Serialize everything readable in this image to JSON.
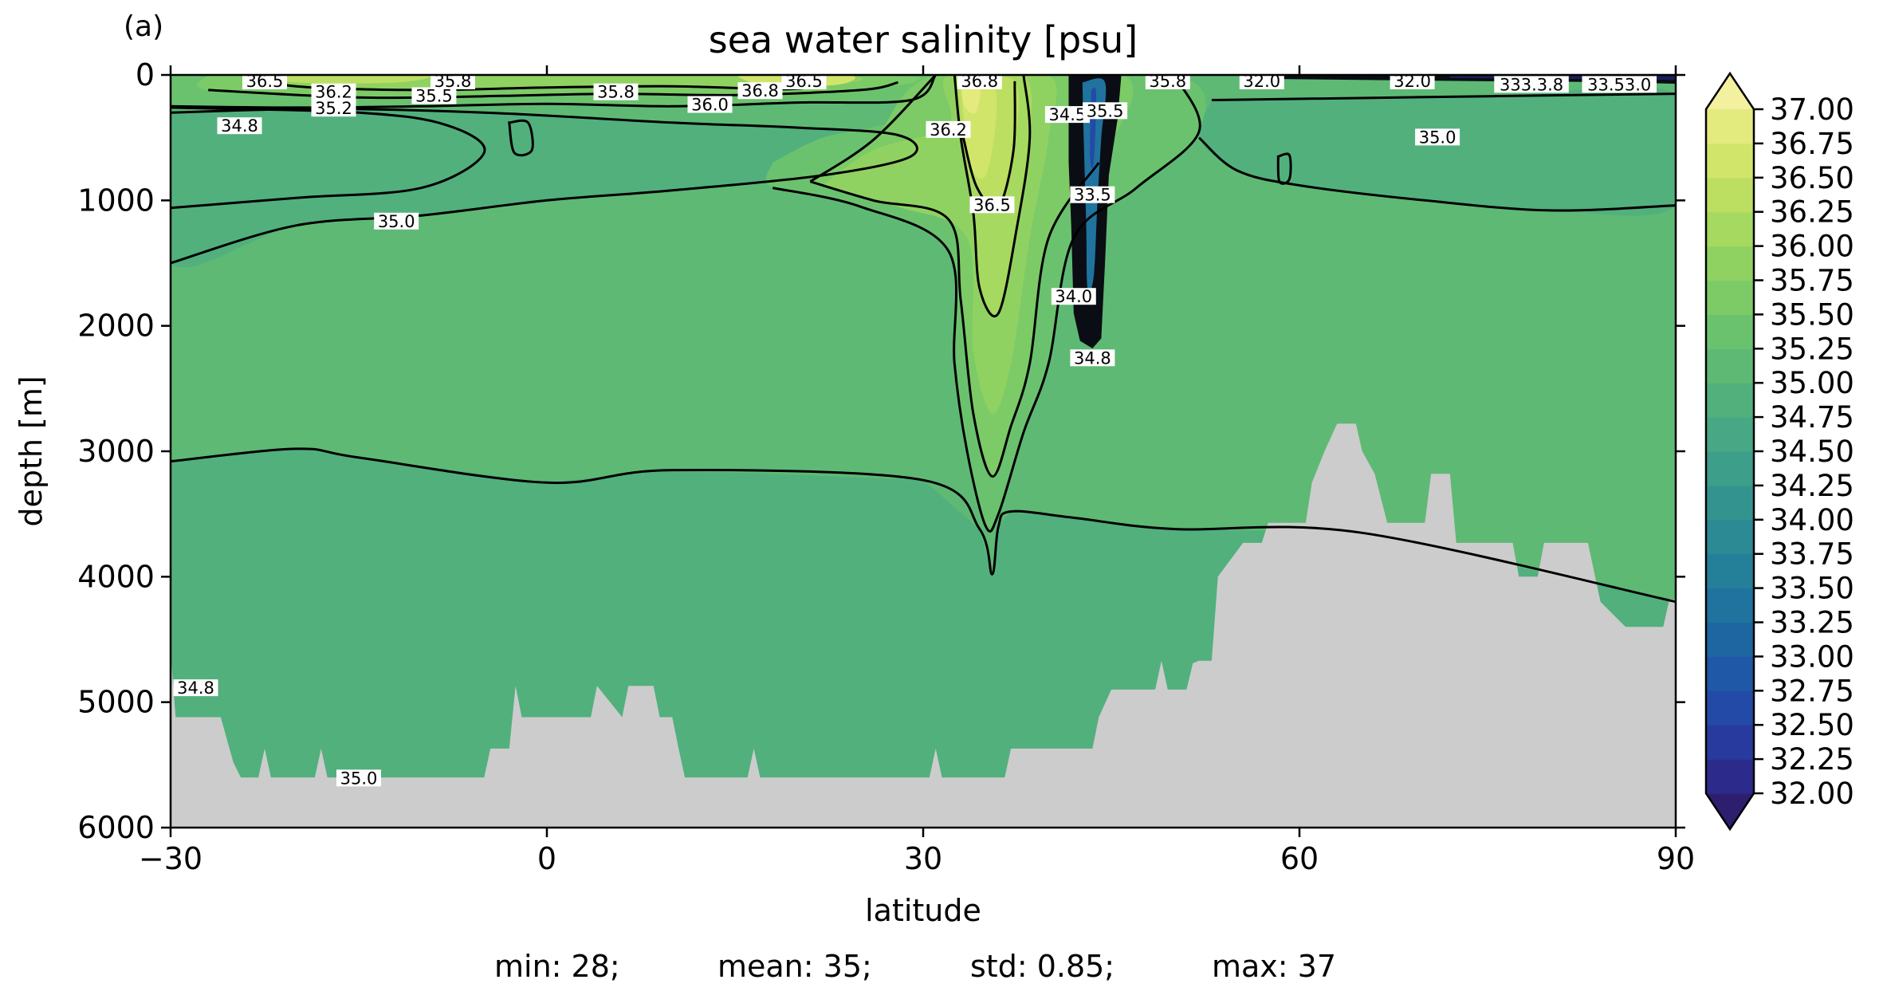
{
  "panel_label": "(a)",
  "stats": {
    "min": "min: 28;",
    "mean": "mean: 35;",
    "std": "std: 0.85;",
    "max": "max: 37"
  },
  "chart_data": {
    "type": "heatmap",
    "subtype": "filled-contour depth section",
    "title": "sea water salinity [psu]",
    "xlabel": "latitude",
    "ylabel": "depth [m]",
    "xlim": [
      -30,
      90
    ],
    "ylim": [
      6000,
      0
    ],
    "y_inverted": true,
    "xticks": [
      -30,
      0,
      30,
      60,
      90
    ],
    "xtick_labels": [
      "−30",
      "0",
      "30",
      "60",
      "90"
    ],
    "yticks": [
      0,
      1000,
      2000,
      3000,
      4000,
      5000,
      6000
    ],
    "ytick_labels": [
      "0",
      "1000",
      "2000",
      "3000",
      "4000",
      "5000",
      "6000"
    ],
    "colorbar": {
      "levels": [
        32.0,
        32.25,
        32.5,
        32.75,
        33.0,
        33.25,
        33.5,
        33.75,
        34.0,
        34.25,
        34.5,
        34.75,
        35.0,
        35.25,
        35.5,
        35.75,
        36.0,
        36.25,
        36.5,
        36.75,
        37.0
      ],
      "tick_labels": [
        "32.00",
        "32.25",
        "32.50",
        "32.75",
        "33.00",
        "33.25",
        "33.50",
        "33.75",
        "34.00",
        "34.25",
        "34.50",
        "34.75",
        "35.00",
        "35.25",
        "35.50",
        "35.75",
        "36.00",
        "36.25",
        "36.50",
        "36.75",
        "37.00"
      ],
      "colors": [
        "#2d1e6e",
        "#2c2b8c",
        "#283a9e",
        "#234aa6",
        "#1f58a6",
        "#1d66a2",
        "#1f739e",
        "#247f99",
        "#2b8a94",
        "#33948f",
        "#3d9e8a",
        "#48a784",
        "#52b07d",
        "#5eb975",
        "#6bc26e",
        "#7ccb67",
        "#90d262",
        "#a6d95f",
        "#bcdf62",
        "#d1e56b",
        "#e3ea7e",
        "#f3f0a0"
      ],
      "extend": "both"
    },
    "land_color": "#cccccc",
    "contour_labels": [
      {
        "text": "36.5",
        "lat": -22.5,
        "depth": 0
      },
      {
        "text": "35.8",
        "lat": -7.5,
        "depth": 0
      },
      {
        "text": "36.2",
        "lat": -17,
        "depth": 100
      },
      {
        "text": "35.5",
        "lat": -9,
        "depth": 130
      },
      {
        "text": "35.2",
        "lat": -17,
        "depth": 230
      },
      {
        "text": "34.8",
        "lat": -24.5,
        "depth": 370
      },
      {
        "text": "35.8",
        "lat": 5.5,
        "depth": 100
      },
      {
        "text": "36.0",
        "lat": 13,
        "depth": 200
      },
      {
        "text": "36.8",
        "lat": 17,
        "depth": 90
      },
      {
        "text": "36.5",
        "lat": 20.5,
        "depth": 0
      },
      {
        "text": "36.8",
        "lat": 34.5,
        "depth": 0
      },
      {
        "text": "36.2",
        "lat": 32,
        "depth": 400
      },
      {
        "text": "36.5",
        "lat": 35.5,
        "depth": 1000
      },
      {
        "text": "35.0",
        "lat": -12,
        "depth": 1130
      },
      {
        "text": "34.5",
        "lat": 41.5,
        "depth": 280
      },
      {
        "text": "35.5",
        "lat": 44.5,
        "depth": 250
      },
      {
        "text": "33.5",
        "lat": 43.5,
        "depth": 920
      },
      {
        "text": "34.0",
        "lat": 42,
        "depth": 1730
      },
      {
        "text": "34.8",
        "lat": 43.5,
        "depth": 2220
      },
      {
        "text": "35.8",
        "lat": 49.5,
        "depth": 0
      },
      {
        "text": "32.0",
        "lat": 57,
        "depth": 0
      },
      {
        "text": "32.0",
        "lat": 69,
        "depth": 0
      },
      {
        "text": "333.3.8",
        "lat": 78.5,
        "depth": 40
      },
      {
        "text": "33.53.0",
        "lat": 85.5,
        "depth": 40
      },
      {
        "text": "35.0",
        "lat": 71,
        "depth": 460
      },
      {
        "text": "34.8",
        "lat": -28,
        "depth": 4850
      },
      {
        "text": "35.0",
        "lat": -15,
        "depth": 5570
      }
    ]
  }
}
